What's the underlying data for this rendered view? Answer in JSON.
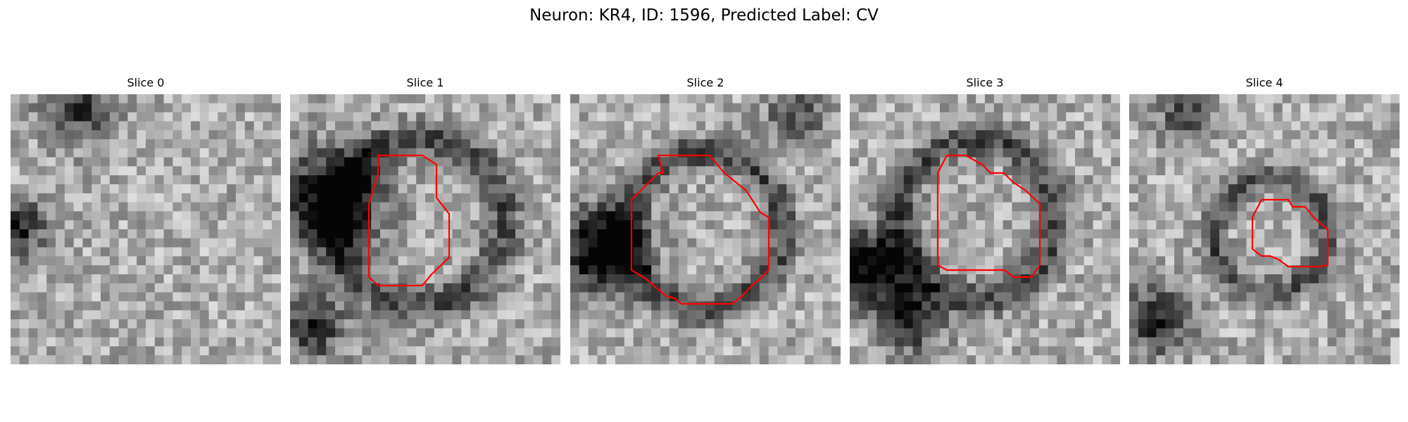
{
  "title": "Neuron: KR4, ID: 1596, Predicted Label: CV",
  "colors": {
    "background": "#ffffff",
    "contour": "#ff0000"
  },
  "panels": [
    {
      "title": "Slice 0",
      "has_contour": false
    },
    {
      "title": "Slice 1",
      "has_contour": true
    },
    {
      "title": "Slice 2",
      "has_contour": true
    },
    {
      "title": "Slice 3",
      "has_contour": true
    },
    {
      "title": "Slice 4",
      "has_contour": true
    }
  ]
}
